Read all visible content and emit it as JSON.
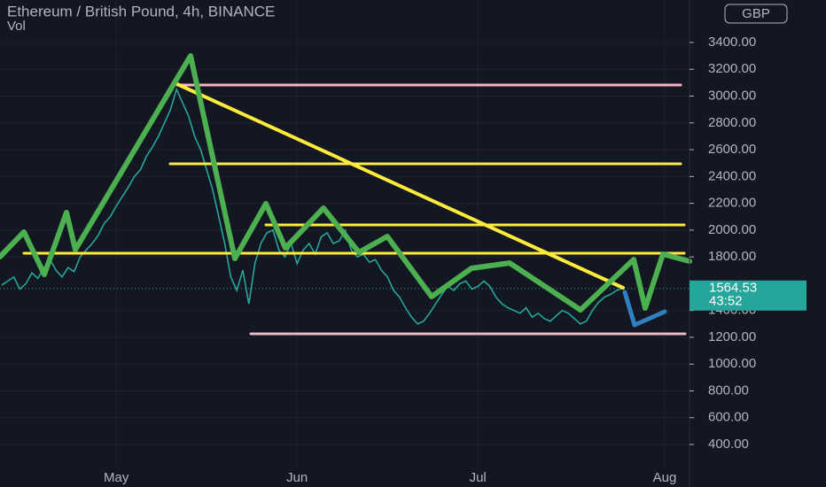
{
  "chart_data": {
    "type": "line",
    "title": "Ethereum / British Pound, 4h, BINANCE",
    "subtitle": "Vol",
    "currency": "GBP",
    "last_price": 1564.53,
    "countdown": "43:52",
    "color": "#26a69a",
    "categories": [
      null,
      null,
      null,
      null,
      null,
      null,
      null,
      null,
      null,
      null,
      null,
      null,
      null,
      null,
      null,
      null,
      null,
      null,
      null,
      "May",
      null,
      null,
      null,
      null,
      null,
      null,
      null,
      null,
      null,
      null,
      null,
      null,
      null,
      null,
      null,
      null,
      null,
      null,
      null,
      null,
      null,
      null,
      null,
      null,
      null,
      null,
      null,
      null,
      null,
      "Jun",
      null,
      null,
      null,
      null,
      null,
      null,
      null,
      null,
      null,
      null,
      null,
      null,
      null,
      null,
      null,
      null,
      null,
      null,
      null,
      null,
      null,
      null,
      null,
      null,
      null,
      null,
      null,
      null,
      null,
      "Jul",
      null,
      null,
      null,
      null,
      null,
      null,
      null,
      null,
      null,
      null,
      null,
      null,
      null,
      null,
      null,
      null,
      null,
      null,
      null,
      null,
      null,
      null,
      null,
      null,
      null,
      null,
      null,
      null,
      null,
      null,
      "Aug",
      null,
      null,
      null,
      null
    ],
    "values": [
      1590,
      1620,
      1650,
      1560,
      1600,
      1680,
      1640,
      1720,
      1780,
      1700,
      1650,
      1720,
      1690,
      1800,
      1850,
      1900,
      1960,
      2050,
      2100,
      2180,
      2250,
      2320,
      2400,
      2450,
      2550,
      2620,
      2700,
      2800,
      2900,
      3050,
      2950,
      2850,
      2700,
      2600,
      2450,
      2300,
      2100,
      1900,
      1650,
      1550,
      1700,
      1450,
      1750,
      1900,
      1980,
      2000,
      1850,
      1800,
      1900,
      1750,
      1850,
      1900,
      1820,
      1950,
      1980,
      1900,
      1920,
      2000,
      1850,
      1800,
      1820,
      1760,
      1780,
      1700,
      1650,
      1550,
      1500,
      1420,
      1350,
      1300,
      1320,
      1380,
      1450,
      1520,
      1580,
      1550,
      1600,
      1620,
      1560,
      1580,
      1620,
      1580,
      1500,
      1450,
      1420,
      1400,
      1380,
      1420,
      1350,
      1380,
      1340,
      1320,
      1360,
      1400,
      1380,
      1340,
      1300,
      1320,
      1400,
      1460,
      1500,
      1520,
      1550,
      1564.53,
      null,
      null,
      null,
      null,
      null,
      null,
      null,
      null,
      null,
      null,
      null
    ],
    "ylim": [
      83,
      3717
    ],
    "yticks": [
      {
        "value": 400,
        "label": "400.00"
      },
      {
        "value": 600,
        "label": "600.00"
      },
      {
        "value": 800,
        "label": "800.00"
      },
      {
        "value": 1000,
        "label": "1000.00"
      },
      {
        "value": 1200,
        "label": "1200.00"
      },
      {
        "value": 1400,
        "label": "1400.00"
      },
      {
        "value": 1800,
        "label": "1800.00"
      },
      {
        "value": 2000,
        "label": "2000.00"
      },
      {
        "value": 2200,
        "label": "2200.00"
      },
      {
        "value": 2400,
        "label": "2400.00"
      },
      {
        "value": 2600,
        "label": "2600.00"
      },
      {
        "value": 2800,
        "label": "2800.00"
      },
      {
        "value": 3000,
        "label": "3000.00"
      },
      {
        "value": 3200,
        "label": "3200.00"
      },
      {
        "value": 3400,
        "label": "3400.00"
      }
    ],
    "grid": true
  }
}
